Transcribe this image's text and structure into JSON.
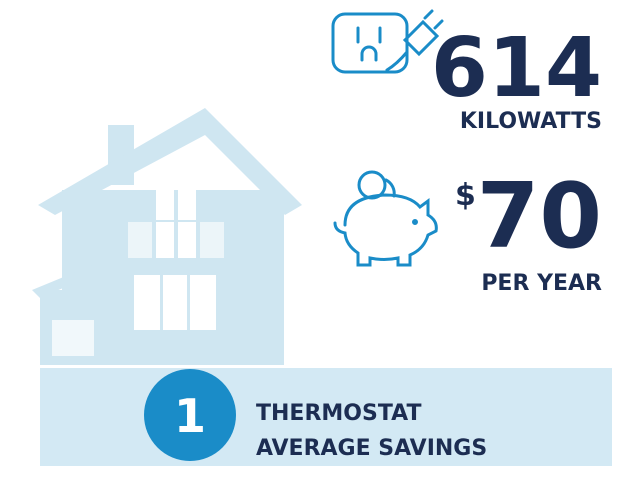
{
  "stats": [
    {
      "value": "614",
      "unit": "KILOWATTS"
    },
    {
      "currency": "$",
      "value": "70",
      "unit": "PER YEAR"
    }
  ],
  "badge": "1",
  "caption": [
    "THERMOSTAT",
    "AVERAGE SAVINGS"
  ]
}
